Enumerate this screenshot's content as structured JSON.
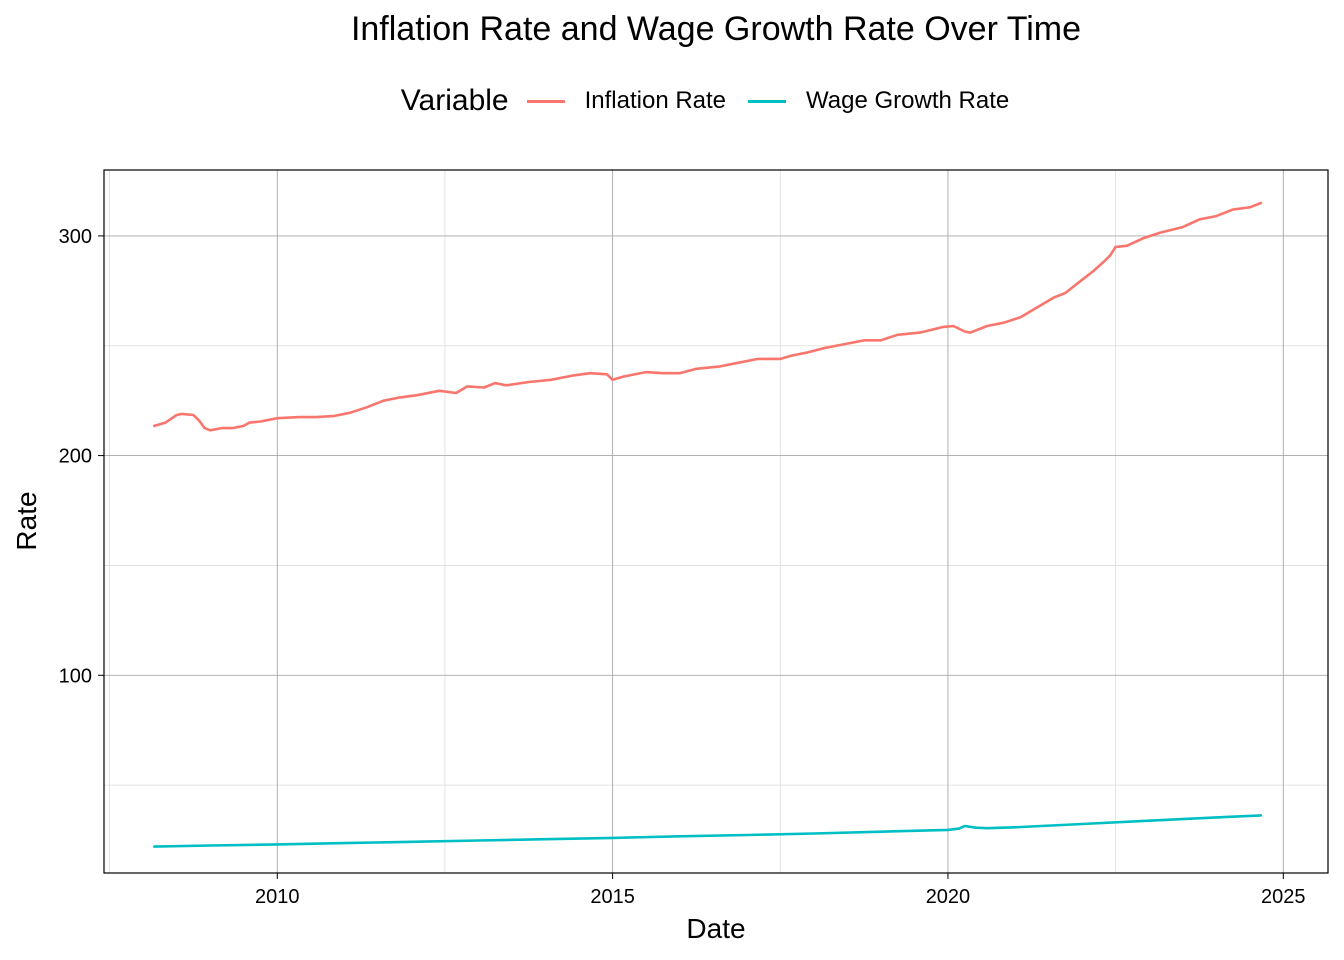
{
  "chart_data": {
    "type": "line",
    "title": "Inflation Rate and Wage Growth Rate Over Time",
    "xlabel": "Date",
    "ylabel": "Rate",
    "legend_title": "Variable",
    "legend_position": "top",
    "grid": true,
    "xlim": [
      "2007-06-01",
      "2025-09-01"
    ],
    "ylim": [
      10,
      330
    ],
    "x_ticks": [
      "2010",
      "2015",
      "2020",
      "2025"
    ],
    "y_ticks": [
      "100",
      "200",
      "300"
    ],
    "series": [
      {
        "name": "Inflation Rate",
        "color": "#F8766D",
        "points": [
          [
            "2008-03",
            213.5
          ],
          [
            "2008-05",
            215.0
          ],
          [
            "2008-07",
            218.5
          ],
          [
            "2008-08",
            219.0
          ],
          [
            "2008-10",
            218.5
          ],
          [
            "2008-11",
            216.0
          ],
          [
            "2008-12",
            212.5
          ],
          [
            "2009-01",
            211.5
          ],
          [
            "2009-03",
            212.5
          ],
          [
            "2009-05",
            212.5
          ],
          [
            "2009-07",
            213.5
          ],
          [
            "2009-08",
            215.0
          ],
          [
            "2009-10",
            215.5
          ],
          [
            "2010-01",
            217.0
          ],
          [
            "2010-05",
            217.5
          ],
          [
            "2010-08",
            217.5
          ],
          [
            "2010-11",
            218.0
          ],
          [
            "2011-02",
            219.5
          ],
          [
            "2011-05",
            222.0
          ],
          [
            "2011-08",
            225.0
          ],
          [
            "2011-11",
            226.5
          ],
          [
            "2012-02",
            227.5
          ],
          [
            "2012-06",
            229.5
          ],
          [
            "2012-09",
            228.5
          ],
          [
            "2012-11",
            231.5
          ],
          [
            "2013-02",
            231.0
          ],
          [
            "2013-04",
            233.0
          ],
          [
            "2013-06",
            232.0
          ],
          [
            "2013-10",
            233.5
          ],
          [
            "2014-02",
            234.5
          ],
          [
            "2014-06",
            236.5
          ],
          [
            "2014-09",
            237.5
          ],
          [
            "2014-12",
            237.0
          ],
          [
            "2015-01",
            234.5
          ],
          [
            "2015-03",
            236.0
          ],
          [
            "2015-07",
            238.0
          ],
          [
            "2015-10",
            237.5
          ],
          [
            "2016-01",
            237.5
          ],
          [
            "2016-04",
            239.5
          ],
          [
            "2016-08",
            240.5
          ],
          [
            "2016-12",
            242.5
          ],
          [
            "2017-03",
            244.0
          ],
          [
            "2017-07",
            244.0
          ],
          [
            "2017-09",
            245.5
          ],
          [
            "2017-12",
            247.0
          ],
          [
            "2018-03",
            249.0
          ],
          [
            "2018-07",
            251.0
          ],
          [
            "2018-10",
            252.5
          ],
          [
            "2019-01",
            252.5
          ],
          [
            "2019-04",
            255.0
          ],
          [
            "2019-08",
            256.0
          ],
          [
            "2019-12",
            258.5
          ],
          [
            "2020-02",
            259.0
          ],
          [
            "2020-04",
            256.5
          ],
          [
            "2020-05",
            256.0
          ],
          [
            "2020-08",
            259.0
          ],
          [
            "2020-11",
            260.5
          ],
          [
            "2021-02",
            263.0
          ],
          [
            "2021-05",
            267.5
          ],
          [
            "2021-08",
            272.0
          ],
          [
            "2021-10",
            274.0
          ],
          [
            "2022-01",
            280.0
          ],
          [
            "2022-03",
            284.0
          ],
          [
            "2022-05",
            288.5
          ],
          [
            "2022-06",
            291.0
          ],
          [
            "2022-07",
            295.0
          ],
          [
            "2022-09",
            295.5
          ],
          [
            "2022-12",
            299.0
          ],
          [
            "2023-03",
            301.5
          ],
          [
            "2023-07",
            304.0
          ],
          [
            "2023-10",
            307.5
          ],
          [
            "2024-01",
            309.0
          ],
          [
            "2024-04",
            312.0
          ],
          [
            "2024-07",
            313.0
          ],
          [
            "2024-09",
            315.0
          ]
        ]
      },
      {
        "name": "Wage Growth Rate",
        "color": "#00BFC4",
        "points": [
          [
            "2008-03",
            22.0
          ],
          [
            "2009-01",
            22.5
          ],
          [
            "2010-01",
            23.0
          ],
          [
            "2011-01",
            23.6
          ],
          [
            "2012-01",
            24.2
          ],
          [
            "2013-01",
            24.8
          ],
          [
            "2014-01",
            25.4
          ],
          [
            "2015-01",
            26.0
          ],
          [
            "2016-01",
            26.7
          ],
          [
            "2017-01",
            27.3
          ],
          [
            "2018-01",
            28.0
          ],
          [
            "2019-01",
            28.8
          ],
          [
            "2020-01",
            29.6
          ],
          [
            "2020-03",
            30.2
          ],
          [
            "2020-04",
            31.4
          ],
          [
            "2020-06",
            30.6
          ],
          [
            "2020-08",
            30.4
          ],
          [
            "2021-01",
            30.8
          ],
          [
            "2022-01",
            32.3
          ],
          [
            "2023-01",
            33.8
          ],
          [
            "2024-01",
            35.3
          ],
          [
            "2024-09",
            36.2
          ]
        ]
      }
    ]
  }
}
